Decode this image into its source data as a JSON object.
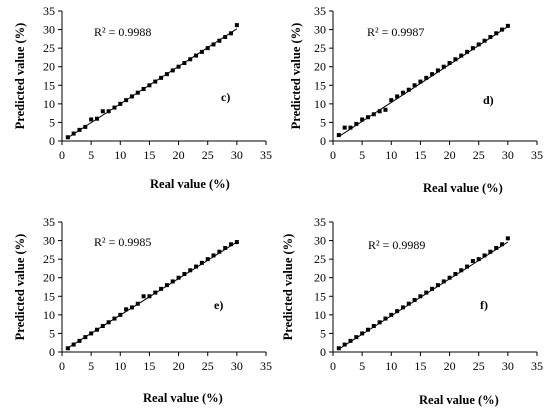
{
  "chart_data": [
    {
      "type": "scatter",
      "panel_label": "c)",
      "r2_text": "R² = 0.9988",
      "xlabel": "Real value (%)",
      "ylabel": "Predicted value (%)",
      "xlim": [
        0,
        35
      ],
      "ylim": [
        0,
        35
      ],
      "xticks": [
        "0",
        "5",
        "10",
        "15",
        "20",
        "25",
        "30",
        "35"
      ],
      "yticks": [
        "0",
        "5",
        "10",
        "15",
        "20",
        "25",
        "30",
        "35"
      ],
      "fit_line": {
        "x": [
          1,
          30
        ],
        "y": [
          0.9,
          30.2
        ]
      },
      "points": {
        "x": [
          1,
          2,
          3,
          4,
          5,
          6,
          7,
          8,
          9,
          10,
          11,
          12,
          13,
          14,
          15,
          16,
          17,
          18,
          19,
          20,
          21,
          22,
          23,
          24,
          25,
          26,
          27,
          28,
          29,
          30
        ],
        "y": [
          1.0,
          2.0,
          3.0,
          3.8,
          5.8,
          6.0,
          8.0,
          8.0,
          9.0,
          10.0,
          11.0,
          12.0,
          13.0,
          14.0,
          15.0,
          16.0,
          17.0,
          18.0,
          19.0,
          20.0,
          21.0,
          22.0,
          23.0,
          24.0,
          25.0,
          26.0,
          27.0,
          28.0,
          29.0,
          31.2
        ]
      }
    },
    {
      "type": "scatter",
      "panel_label": "d)",
      "r2_text": "R² = 0.9987",
      "xlabel": "Real value (%)",
      "ylabel": "Predicted value (%)",
      "xlim": [
        0,
        35
      ],
      "ylim": [
        0,
        35
      ],
      "xticks": [
        "0",
        "5",
        "10",
        "15",
        "20",
        "25",
        "30",
        "35"
      ],
      "yticks": [
        "0",
        "5",
        "10",
        "15",
        "20",
        "25",
        "30",
        "35"
      ],
      "fit_line": {
        "x": [
          1,
          30
        ],
        "y": [
          1.2,
          30.8
        ]
      },
      "points": {
        "x": [
          1,
          2,
          3,
          4,
          5,
          6,
          7,
          8,
          9,
          10,
          11,
          12,
          13,
          14,
          15,
          16,
          17,
          18,
          19,
          20,
          21,
          22,
          23,
          24,
          25,
          26,
          27,
          28,
          29,
          30
        ],
        "y": [
          1.6,
          3.6,
          3.6,
          4.6,
          5.8,
          6.4,
          7.2,
          8.0,
          8.4,
          11.0,
          12.0,
          13.0,
          13.8,
          15.0,
          16.0,
          17.0,
          18.0,
          19.0,
          20.0,
          21.0,
          22.0,
          23.0,
          24.0,
          25.0,
          26.0,
          27.0,
          28.0,
          29.0,
          30.0,
          31.0
        ]
      }
    },
    {
      "type": "scatter",
      "panel_label": "e)",
      "r2_text": "R² = 0.9985",
      "xlabel": "Real value (%)",
      "ylabel": "Predicted value (%)",
      "xlim": [
        0,
        35
      ],
      "ylim": [
        0,
        35
      ],
      "xticks": [
        "0",
        "5",
        "10",
        "15",
        "20",
        "25",
        "30",
        "35"
      ],
      "yticks": [
        "0",
        "5",
        "10",
        "15",
        "20",
        "25",
        "30",
        "35"
      ],
      "fit_line": {
        "x": [
          1,
          30
        ],
        "y": [
          1.1,
          29.6
        ]
      },
      "points": {
        "x": [
          1,
          2,
          3,
          4,
          5,
          6,
          7,
          8,
          9,
          10,
          11,
          12,
          13,
          14,
          15,
          16,
          17,
          18,
          19,
          20,
          21,
          22,
          23,
          24,
          25,
          26,
          27,
          28,
          29,
          30
        ],
        "y": [
          1.0,
          2.0,
          3.0,
          4.0,
          5.0,
          6.0,
          7.0,
          8.0,
          9.0,
          10.0,
          11.5,
          12.0,
          13.0,
          15.0,
          15.0,
          16.0,
          17.0,
          18.0,
          19.0,
          20.0,
          21.0,
          22.0,
          23.0,
          24.0,
          25.0,
          26.0,
          27.0,
          28.0,
          29.0,
          29.6
        ]
      }
    },
    {
      "type": "scatter",
      "panel_label": "f)",
      "r2_text": "R² = 0.9989",
      "xlabel": "Real value (%)",
      "ylabel": "Predicted value (%)",
      "xlim": [
        0,
        35
      ],
      "ylim": [
        0,
        35
      ],
      "xticks": [
        "0",
        "5",
        "10",
        "15",
        "20",
        "25",
        "30",
        "35"
      ],
      "yticks": [
        "0",
        "5",
        "10",
        "15",
        "20",
        "25",
        "30",
        "35"
      ],
      "fit_line": {
        "x": [
          1,
          30
        ],
        "y": [
          0.8,
          29.6
        ]
      },
      "points": {
        "x": [
          1,
          2,
          3,
          4,
          5,
          6,
          7,
          8,
          9,
          10,
          11,
          12,
          13,
          14,
          15,
          16,
          17,
          18,
          19,
          20,
          21,
          22,
          23,
          24,
          25,
          26,
          27,
          28,
          29,
          30
        ],
        "y": [
          1.0,
          2.0,
          3.0,
          4.0,
          5.0,
          6.0,
          7.0,
          8.0,
          9.0,
          10.0,
          11.0,
          12.0,
          13.0,
          14.0,
          15.0,
          16.0,
          17.0,
          18.0,
          19.0,
          20.0,
          21.0,
          22.0,
          23.0,
          24.5,
          25.0,
          26.0,
          27.0,
          28.0,
          29.0,
          30.6
        ]
      }
    }
  ]
}
